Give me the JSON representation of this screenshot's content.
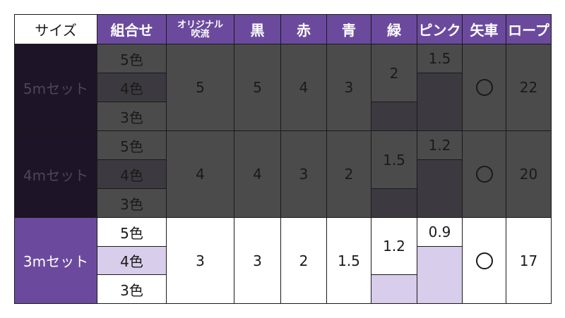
{
  "headers": [
    "サイズ",
    "組合せ",
    "オリジナル",
    "吹流",
    "黒",
    "赤",
    "青",
    "緑",
    "ピンク",
    "矢車",
    "ロープ"
  ],
  "combos": [
    "5色",
    "4色",
    "3色"
  ],
  "rows": [
    {
      "size": "5mセット",
      "original": "5",
      "black": "5",
      "red": "4",
      "blue": "3",
      "green": "2",
      "pink": "1.5",
      "yaguruma": "○",
      "rope": "22"
    },
    {
      "size": "4mセット",
      "original": "4",
      "black": "4",
      "red": "3",
      "blue": "2",
      "green": "1.5",
      "pink": "1.2",
      "yaguruma": "○",
      "rope": "20"
    },
    {
      "size": "3mセット",
      "original": "3",
      "black": "3",
      "red": "2",
      "blue": "1.5",
      "green": "1.2",
      "pink": "0.9",
      "yaguruma": "○",
      "rope": "17"
    }
  ],
  "colors": {
    "header": "#6b4a9e",
    "dark": "#4b4b4b",
    "highlight": "#d8cdea"
  }
}
